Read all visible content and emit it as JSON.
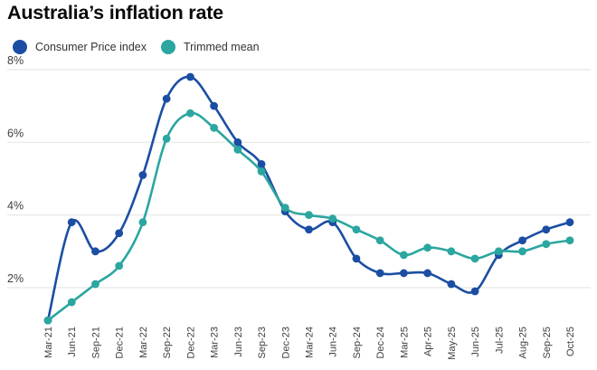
{
  "colors": {
    "background": "#ffffff",
    "grid": "#e8e8e5",
    "axis_text": "#3d3d3d",
    "title_text": "#0a0a0a",
    "cpi_blue": "#1b4ea3",
    "trimmed_teal": "#2ba6a0"
  },
  "chart_data": {
    "type": "line",
    "title": "Australia’s inflation rate",
    "legend_position": "top-left",
    "grid": true,
    "unit": "%",
    "ylim": [
      1.0,
      8.2
    ],
    "y_ticks": [
      {
        "value": 8,
        "label": "8%"
      },
      {
        "value": 6,
        "label": "6%"
      },
      {
        "value": 4,
        "label": "4%"
      },
      {
        "value": 2,
        "label": "2%"
      }
    ],
    "categories": [
      "Mar-21",
      "Jun-21",
      "Sep-21",
      "Dec-21",
      "Mar-22",
      "Sep-22",
      "Dec-22",
      "Mar-23",
      "Jun-23",
      "Sep-23",
      "Dec-23",
      "Mar-24",
      "Jun-24",
      "Sep-24",
      "Dec-24",
      "Mar-25",
      "Apr-25",
      "May-25",
      "Jun-25",
      "Jul-25",
      "Aug-25",
      "Sep-25",
      "Oct-25"
    ],
    "series": [
      {
        "name": "Consumer Price index",
        "color": "#1b4ea3",
        "values": [
          1.1,
          3.8,
          3.0,
          3.5,
          5.1,
          7.2,
          7.8,
          7.0,
          6.0,
          5.4,
          4.1,
          3.6,
          3.8,
          2.8,
          2.4,
          2.4,
          2.4,
          2.1,
          1.9,
          2.9,
          3.3,
          3.6,
          3.8
        ]
      },
      {
        "name": "Trimmed mean",
        "color": "#2ba6a0",
        "values": [
          1.1,
          1.6,
          2.1,
          2.6,
          3.8,
          6.1,
          6.8,
          6.4,
          5.8,
          5.2,
          4.2,
          4.0,
          3.9,
          3.6,
          3.3,
          2.9,
          3.1,
          3.0,
          2.8,
          3.0,
          3.0,
          3.2,
          3.3
        ]
      }
    ]
  }
}
